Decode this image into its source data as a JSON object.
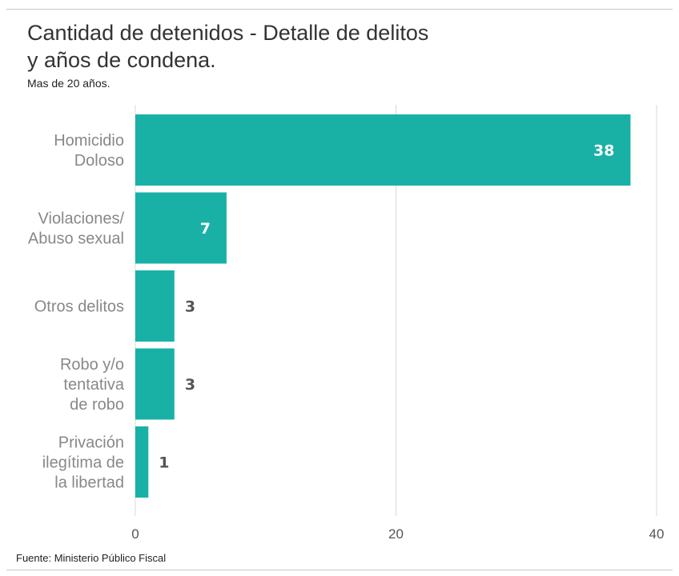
{
  "title": "Cantidad de detenidos - Detalle de delitos y años de condena.",
  "subtitle": "Mas de 20 años.",
  "source": "Fuente: Ministerio Público Fiscal",
  "colors": {
    "bar": "#19b1a6",
    "label_inside": "#ffffff",
    "label_outside": "#555555",
    "category_text": "#888888",
    "grid": "#d8d8d8"
  },
  "chart_data": {
    "type": "bar",
    "orientation": "horizontal",
    "title": "Cantidad de detenidos - Detalle de delitos y años de condena.",
    "subtitle": "Mas de 20 años.",
    "categories": [
      [
        "Homicidio",
        "Doloso"
      ],
      [
        "Violaciones/",
        "Abuso sexual"
      ],
      [
        "Otros delitos"
      ],
      [
        "Robo y/o",
        "tentativa",
        "de robo"
      ],
      [
        "Privación",
        "ilegítima de",
        "la libertad"
      ]
    ],
    "values": [
      38,
      7,
      3,
      3,
      1
    ],
    "xlim": [
      0,
      40
    ],
    "xticks": [
      "0",
      "20",
      "40"
    ],
    "grid": true,
    "data_labels": true
  }
}
